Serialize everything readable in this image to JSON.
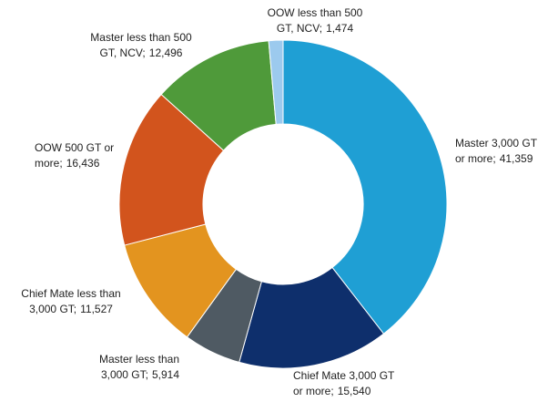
{
  "chart_data": {
    "type": "donut",
    "categories": [
      "Master 3,000 GT or more;",
      "Chief Mate 3,000 GT or more;",
      "Master less than 3,000 GT;",
      "Chief Mate less than 3,000 GT;",
      "OOW 500 GT or more;",
      "Master less than 500 GT, NCV;",
      "OOW less than 500 GT, NCV;"
    ],
    "values": [
      41359,
      15540,
      5914,
      11527,
      16436,
      12496,
      1474
    ],
    "value_labels": [
      "41,359",
      "15,540",
      "5,914",
      "11,527",
      "16,436",
      "12,496",
      "1,474"
    ],
    "colors": [
      "#1f9fd4",
      "#0e2f6c",
      "#4f5a63",
      "#e3941f",
      "#d2541d",
      "#4f9a3a",
      "#9ccaee"
    ]
  }
}
